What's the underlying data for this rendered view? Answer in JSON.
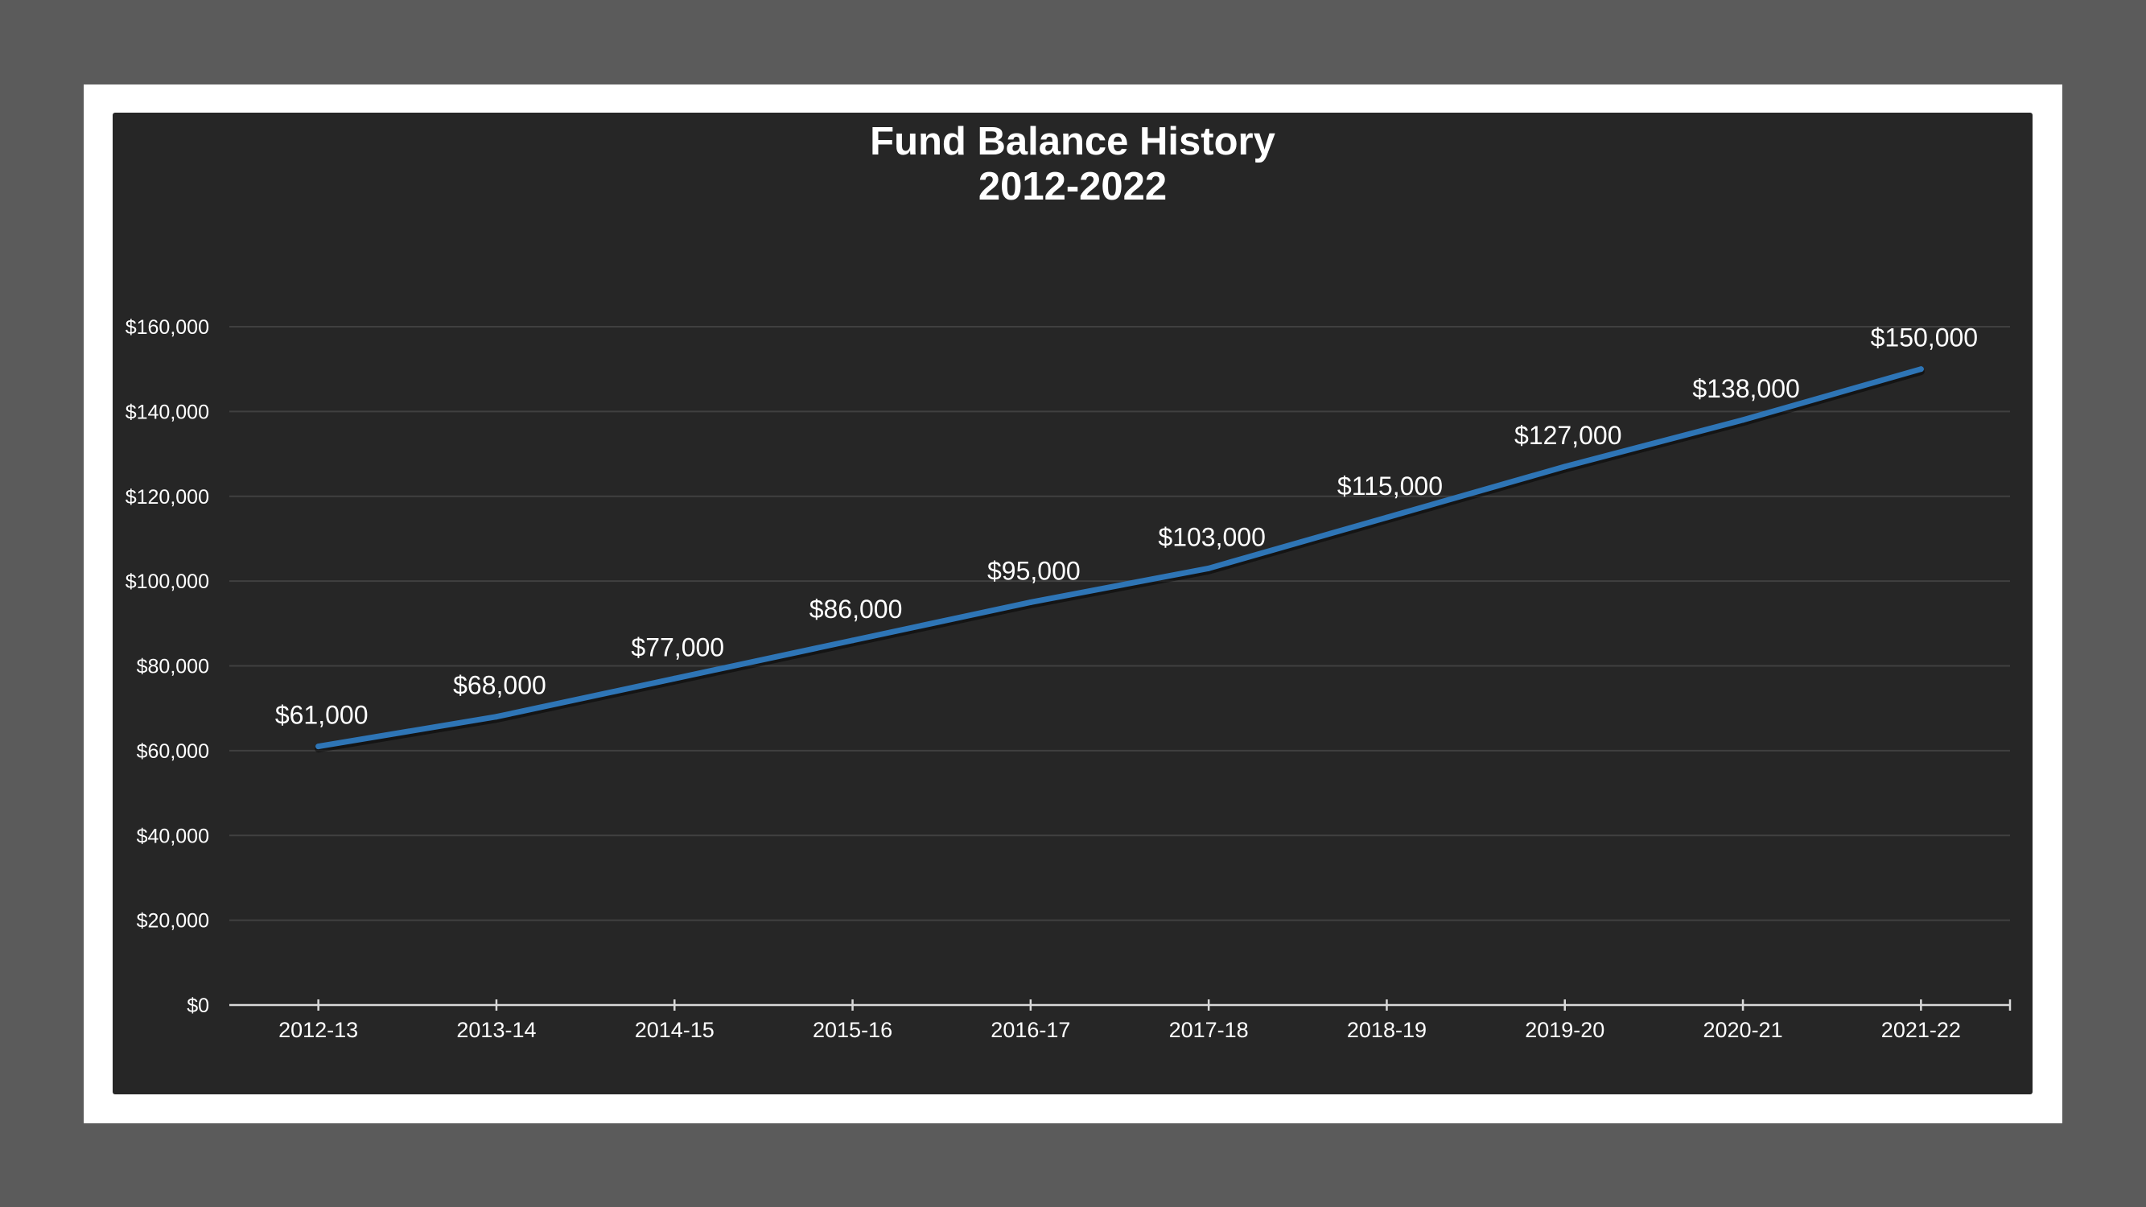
{
  "chart_data": {
    "type": "line",
    "title": "Fund Balance History",
    "subtitle": "2012-2022",
    "xlabel": "",
    "ylabel": "",
    "categories": [
      "2012-13",
      "2013-14",
      "2014-15",
      "2015-16",
      "2016-17",
      "2017-18",
      "2018-19",
      "2019-20",
      "2020-21",
      "2021-22"
    ],
    "series": [
      {
        "values": [
          61000,
          68000,
          77000,
          86000,
          95000,
          103000,
          115000,
          127000,
          138000,
          150000
        ],
        "data_labels": [
          "$61,000",
          "$68,000",
          "$77,000",
          "$86,000",
          "$95,000",
          "$103,000",
          "$115,000",
          "$127,000",
          "$138,000",
          "$150,000"
        ]
      }
    ],
    "yticks": [
      0,
      20000,
      40000,
      60000,
      80000,
      100000,
      120000,
      140000,
      160000
    ],
    "ytick_labels": [
      "$0",
      "$20,000",
      "$40,000",
      "$60,000",
      "$80,000",
      "$100,000",
      "$120,000",
      "$140,000",
      "$160,000"
    ],
    "ylim": [
      0,
      160000
    ],
    "grid": true,
    "legend": "none",
    "colors": {
      "page_background": "#5b5b5b",
      "frame": "#ffffff",
      "plot_background": "#262626",
      "gridline": "#404040",
      "axis": "#d9d9d9",
      "line": "#2e75b6",
      "text": "#ffffff"
    }
  }
}
